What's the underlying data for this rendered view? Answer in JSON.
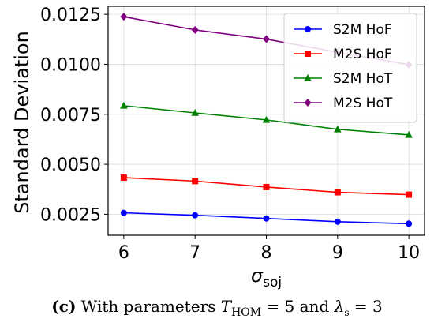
{
  "chart_data": {
    "type": "line",
    "x": [
      6,
      7,
      8,
      9,
      10
    ],
    "xlabel_main": "σ",
    "xlabel_sub": "soj",
    "ylabel": "Standard Deviation",
    "xlim": [
      5.78,
      10.22
    ],
    "ylim": [
      0.00145,
      0.0129
    ],
    "xticks": [
      6,
      7,
      8,
      9,
      10
    ],
    "xtick_labels": [
      "6",
      "7",
      "8",
      "9",
      "10"
    ],
    "yticks": [
      0.0025,
      0.005,
      0.0075,
      0.01,
      0.0125
    ],
    "ytick_labels": [
      "0.0025",
      "0.0050",
      "0.0075",
      "0.0100",
      "0.0125"
    ],
    "grid": true,
    "legend_position": "top-right",
    "series": [
      {
        "name": "S2M HoF",
        "color": "#0000ff",
        "marker": "circle",
        "values": [
          0.00257,
          0.00245,
          0.00229,
          0.00213,
          0.00203
        ]
      },
      {
        "name": "M2S HoF",
        "color": "#ff0000",
        "marker": "square",
        "values": [
          0.00433,
          0.00416,
          0.00386,
          0.0036,
          0.00348
        ]
      },
      {
        "name": "S2M HoT",
        "color": "#008000",
        "marker": "triangle",
        "values": [
          0.00793,
          0.00757,
          0.00722,
          0.00675,
          0.00647
        ]
      },
      {
        "name": "M2S HoT",
        "color": "#800080",
        "marker": "diamond",
        "values": [
          0.01238,
          0.01172,
          0.01126,
          0.0106,
          0.00998
        ]
      }
    ]
  },
  "caption": {
    "label": "(c)",
    "text": "With parameters",
    "t_symbol": "T",
    "t_sub": "HOM",
    "t_value": " = 5 and ",
    "lambda_symbol": "λ",
    "lambda_sub": "s",
    "lambda_value": " = 3"
  }
}
